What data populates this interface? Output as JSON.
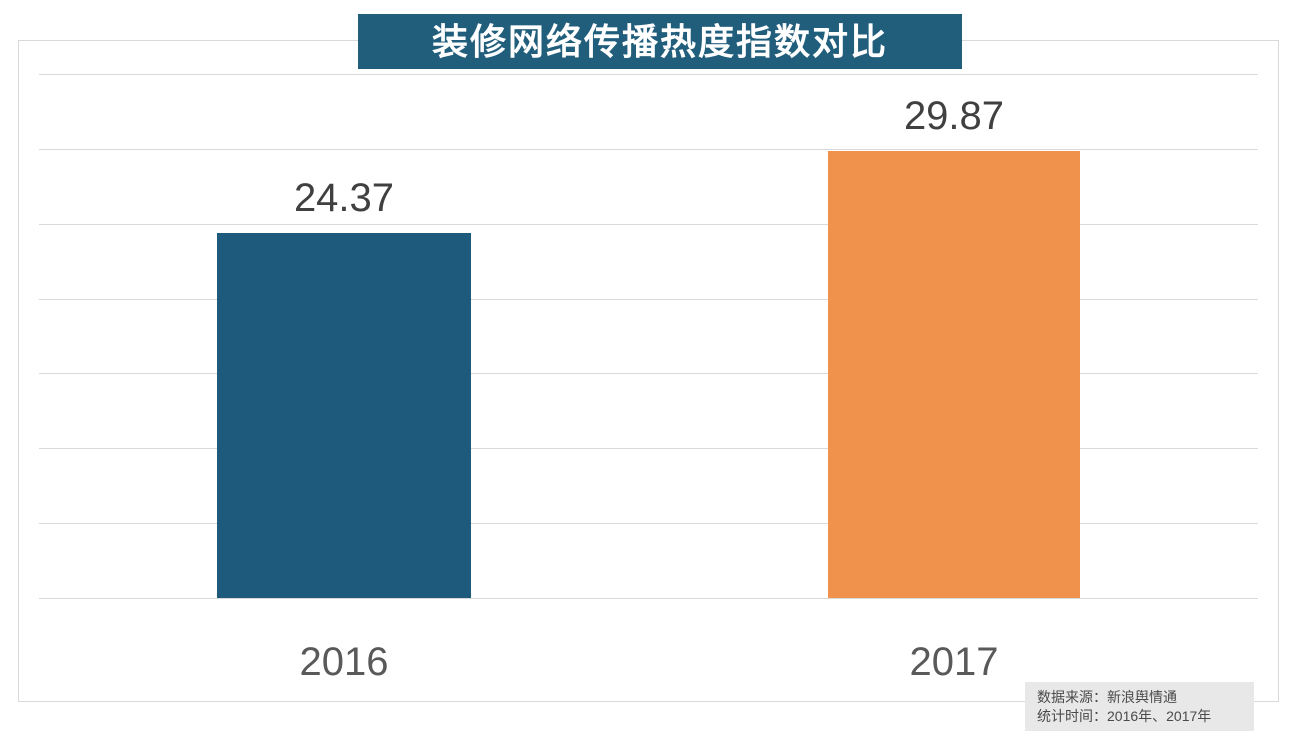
{
  "chart_data": {
    "type": "bar",
    "title": "装修网络传播热度指数对比",
    "categories": [
      "2016",
      "2017"
    ],
    "values": [
      24.37,
      29.87
    ],
    "value_labels": [
      "24.37",
      "29.87"
    ],
    "ylim": [
      0,
      35
    ],
    "gridline_step": 5,
    "grid": "horizontal-only",
    "legend": "none",
    "bar_colors": [
      "#1D5A7B",
      "#F0914C"
    ],
    "gridline_color": "#D9D9D9",
    "frame_color": "#D9D9D9",
    "value_label_color": "#404040",
    "axis_label_color": "#595959"
  },
  "title_bar": {
    "bg": "#215E7C",
    "fg": "#FFFFFF"
  },
  "source_note": {
    "line1": "数据来源：新浪舆情通",
    "line2": "统计时间：2016年、2017年",
    "bg": "#E8E8E8",
    "fg": "#4A4A4A"
  }
}
